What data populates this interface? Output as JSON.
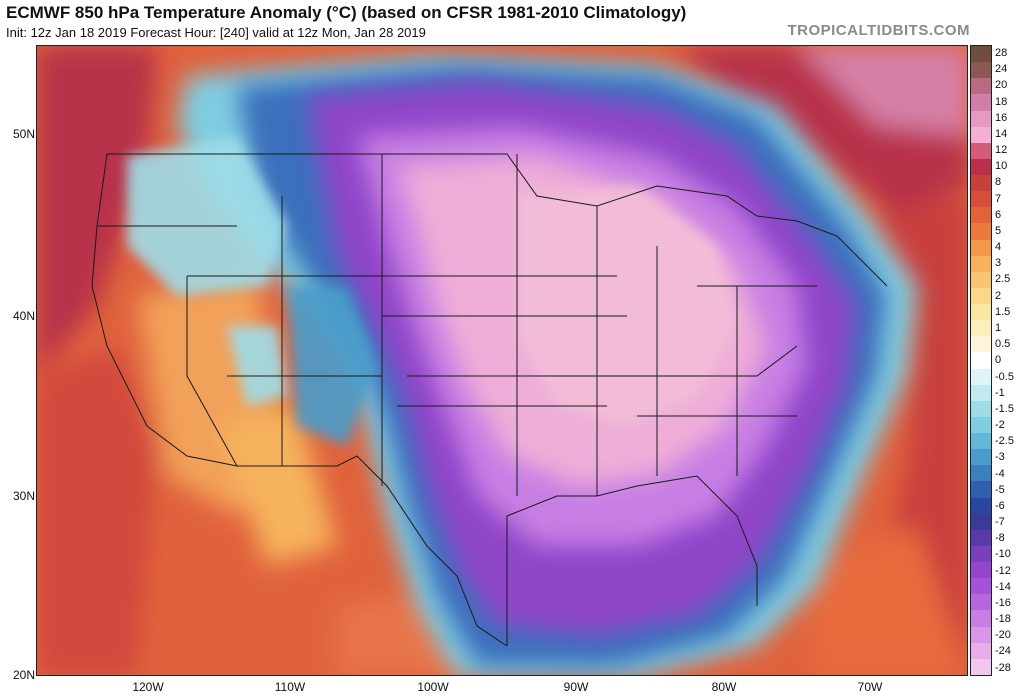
{
  "header": {
    "title": "ECMWF 850 hPa Temperature Anomaly (°C) (based on CFSR 1981-2010 Climatology)",
    "subtitle": "Init: 12z Jan 18 2019   Forecast Hour: [240]   valid at 12z Mon, Jan 28 2019",
    "brand": "TROPICALTIDBITS.COM"
  },
  "axes": {
    "lat_labels": [
      "50N",
      "40N",
      "30N",
      "20N"
    ],
    "lon_labels": [
      "120W",
      "110W",
      "100W",
      "90W",
      "80W",
      "70W"
    ]
  },
  "colorbar": {
    "levels": [
      "28",
      "24",
      "20",
      "18",
      "16",
      "14",
      "12",
      "10",
      "8",
      "7",
      "6",
      "5",
      "4",
      "3",
      "2.5",
      "2",
      "1.5",
      "1",
      "0.5",
      "0",
      "-0.5",
      "-1",
      "-1.5",
      "-2",
      "-2.5",
      "-3",
      "-4",
      "-5",
      "-6",
      "-7",
      "-8",
      "-10",
      "-12",
      "-14",
      "-16",
      "-18",
      "-20",
      "-24",
      "-28"
    ],
    "colors": [
      "#6f4e3d",
      "#8a5a52",
      "#b86a82",
      "#cf7fa8",
      "#e59ac5",
      "#f2b0d4",
      "#d45b7a",
      "#b8304a",
      "#c8403c",
      "#d5503a",
      "#e3623a",
      "#ec7a3c",
      "#f39a4a",
      "#f6b25c",
      "#f8c672",
      "#f9d889",
      "#fae6a3",
      "#fbefbd",
      "#fdf6dc",
      "#ffffff",
      "#dff4f6",
      "#bfeaf0",
      "#9edde8",
      "#7fcde2",
      "#62b7d8",
      "#4a9dcb",
      "#3a7fbf",
      "#2f5fae",
      "#2b46a0",
      "#3a3a98",
      "#5a3aa8",
      "#7a3fbc",
      "#9346cc",
      "#a552d8",
      "#b866e0",
      "#c97ee6",
      "#d995e8",
      "#e8aeea",
      "#f2c6ee"
    ]
  }
}
